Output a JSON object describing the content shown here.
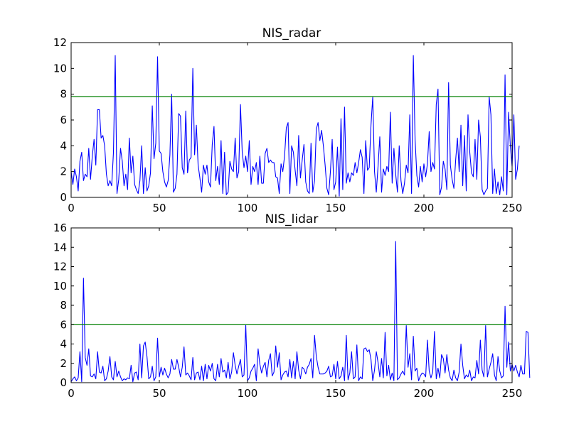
{
  "colors": {
    "series": "#0000ff",
    "threshold": "#008000",
    "axes": "#000000",
    "background": "#ffffff"
  },
  "chart_data": [
    {
      "type": "line",
      "title": "NIS_radar",
      "xlim": [
        0,
        250
      ],
      "ylim": [
        0,
        12
      ],
      "xticks": [
        0,
        50,
        100,
        150,
        200,
        250
      ],
      "yticks": [
        0,
        2,
        4,
        6,
        8,
        10,
        12
      ],
      "grid": false,
      "threshold": 7.815,
      "y": [
        2.0,
        1.0,
        2.2,
        1.6,
        0.5,
        2.8,
        3.5,
        1.3,
        1.8,
        1.6,
        3.8,
        1.4,
        3.2,
        4.5,
        2.5,
        6.8,
        6.8,
        4.6,
        4.8,
        4.0,
        1.8,
        0.9,
        1.3,
        0.9,
        3.5,
        11.0,
        0.3,
        1.4,
        3.8,
        2.8,
        0.9,
        1.8,
        0.6,
        4.6,
        1.9,
        3.2,
        1.0,
        0.6,
        0.3,
        1.3,
        4.0,
        0.3,
        2.3,
        0.5,
        0.9,
        1.9,
        7.1,
        3.0,
        4.2,
        10.9,
        3.6,
        3.4,
        2.0,
        1.2,
        0.8,
        1.3,
        3.3,
        8.0,
        0.4,
        0.7,
        1.8,
        6.5,
        6.3,
        2.3,
        1.8,
        6.7,
        1.9,
        2.9,
        3.1,
        10.0,
        3.3,
        5.6,
        2.5,
        1.5,
        0.4,
        2.5,
        1.8,
        2.5,
        1.2,
        0.8,
        4.1,
        5.5,
        1.3,
        2.4,
        1.0,
        4.4,
        0.3,
        3.5,
        0.2,
        0.4,
        2.8,
        2.2,
        2.0,
        4.6,
        1.5,
        2.0,
        7.2,
        3.5,
        2.3,
        3.2,
        2.0,
        4.4,
        1.0,
        2.4,
        2.0,
        2.7,
        1.0,
        3.2,
        1.1,
        1.1,
        3.4,
        3.8,
        2.7,
        2.9,
        2.7,
        2.7,
        1.6,
        1.5,
        0.3,
        2.6,
        2.0,
        3.2,
        5.4,
        5.8,
        0.3,
        4.0,
        3.5,
        2.1,
        0.9,
        4.8,
        1.5,
        2.9,
        4.1,
        1.2,
        0.5,
        0.3,
        4.2,
        0.4,
        1.3,
        5.3,
        5.8,
        4.4,
        5.2,
        4.0,
        2.5,
        0.7,
        0.2,
        2.0,
        4.5,
        0.6,
        1.2,
        3.9,
        0.1,
        6.1,
        0.6,
        7.0,
        1.1,
        1.9,
        1.2,
        1.9,
        1.7,
        2.7,
        1.9,
        2.7,
        3.7,
        3.1,
        0.3,
        4.4,
        2.1,
        2.3,
        5.6,
        7.8,
        2.0,
        0.4,
        2.4,
        4.7,
        0.4,
        2.2,
        1.7,
        2.4,
        2.0,
        6.6,
        1.1,
        3.8,
        1.8,
        0.4,
        4.0,
        1.3,
        0.3,
        1.1,
        2.5,
        1.9,
        6.4,
        0.3,
        11.0,
        4.5,
        1.7,
        0.8,
        2.4,
        1.2,
        2.6,
        1.6,
        2.6,
        5.1,
        2.0,
        2.7,
        2.2,
        7.2,
        8.4,
        0.2,
        0.8,
        2.8,
        2.2,
        0.6,
        8.9,
        2.5,
        1.4,
        0.7,
        2.9,
        4.6,
        2.0,
        5.6,
        0.9,
        4.8,
        0.5,
        6.4,
        3.5,
        1.9,
        1.6,
        4.5,
        1.4,
        6.0,
        4.7,
        0.6,
        0.2,
        0.5,
        0.7,
        7.8,
        6.4,
        0.3,
        2.2,
        0.3,
        1.2,
        0.2,
        1.6,
        0.5,
        9.5,
        0.2,
        6.6,
        4.0,
        2.4,
        6.4,
        1.4,
        2.2,
        4.0
      ]
    },
    {
      "type": "line",
      "title": "NIS_lidar",
      "xlim": [
        0,
        250
      ],
      "ylim": [
        0,
        16
      ],
      "xticks": [
        0,
        50,
        100,
        150,
        200,
        250
      ],
      "yticks": [
        0,
        2,
        4,
        6,
        8,
        10,
        12,
        14,
        16
      ],
      "grid": false,
      "threshold": 5.991,
      "y": [
        0.1,
        0.4,
        0.6,
        0.2,
        0.5,
        3.2,
        0.1,
        10.8,
        2.6,
        1.8,
        3.5,
        0.7,
        0.6,
        0.9,
        0.4,
        3.2,
        1.1,
        1.0,
        1.7,
        0.2,
        0.4,
        1.2,
        2.7,
        0.6,
        0.3,
        2.2,
        0.6,
        1.2,
        0.6,
        0.2,
        0.4,
        0.3,
        0.5,
        0.4,
        1.8,
        0.1,
        1.0,
        1.1,
        0.3,
        4.0,
        0.5,
        3.8,
        4.2,
        2.7,
        0.4,
        0.6,
        1.7,
        0.2,
        0.6,
        4.6,
        0.6,
        1.6,
        0.8,
        1.5,
        0.9,
        0.5,
        0.9,
        2.4,
        1.4,
        1.4,
        2.4,
        1.6,
        0.6,
        1.6,
        3.7,
        0.8,
        1.0,
        0.7,
        0.3,
        2.6,
        0.3,
        1.0,
        1.1,
        0.3,
        1.7,
        0.2,
        1.9,
        0.4,
        1.8,
        1.2,
        2.0,
        0.4,
        0.2,
        1.9,
        0.6,
        2.5,
        1.1,
        1.3,
        0.5,
        2.1,
        0.4,
        1.1,
        3.1,
        1.8,
        0.9,
        1.7,
        2.4,
        0.6,
        0.8,
        6.0,
        0.2,
        0.5,
        1.2,
        1.5,
        1.9,
        0.2,
        3.5,
        1.9,
        1.0,
        1.7,
        2.1,
        0.6,
        2.3,
        3.0,
        0.7,
        1.1,
        3.8,
        1.6,
        3.1,
        0.3,
        0.8,
        1.1,
        1.2,
        0.6,
        2.4,
        0.5,
        2.2,
        0.4,
        3.2,
        1.3,
        0.4,
        1.6,
        1.4,
        0.9,
        1.6,
        1.9,
        2.5,
        0.5,
        4.9,
        2.7,
        1.6,
        0.9,
        0.9,
        0.9,
        1.0,
        1.2,
        1.7,
        0.6,
        0.7,
        1.9,
        0.4,
        2.2,
        0.4,
        0.7,
        1.6,
        0.2,
        4.9,
        0.3,
        1.0,
        3.2,
        0.4,
        0.6,
        3.9,
        0.2,
        0.6,
        0.4,
        3.5,
        3.6,
        3.2,
        3.4,
        2.4,
        0.2,
        1.3,
        3.2,
        2.1,
        0.6,
        2.5,
        0.5,
        5.2,
        0.7,
        1.8,
        0.3,
        1.0,
        0.2,
        14.6,
        0.3,
        0.5,
        0.9,
        1.2,
        0.8,
        5.9,
        1.6,
        3.0,
        0.3,
        4.8,
        1.2,
        1.5,
        0.2,
        0.7,
        1.0,
        0.9,
        0.6,
        4.4,
        1.2,
        0.5,
        1.1,
        5.3,
        0.4,
        1.5,
        0.5,
        2.9,
        2.5,
        1.0,
        2.9,
        1.3,
        0.5,
        0.2,
        1.3,
        0.5,
        0.2,
        1.1,
        4.0,
        1.8,
        0.4,
        0.8,
        0.6,
        1.3,
        0.2,
        0.6,
        0.5,
        2.3,
        0.9,
        4.4,
        1.3,
        0.6,
        5.9,
        0.6,
        1.4,
        2.1,
        3.0,
        0.8,
        0.2,
        2.7,
        1.2,
        0.5,
        0.7,
        7.9,
        1.6,
        4.2,
        1.2,
        1.9,
        1.2,
        1.8,
        1.1,
        0.6,
        1.8,
        0.9,
        0.9,
        5.3,
        5.2,
        0.5
      ]
    }
  ]
}
